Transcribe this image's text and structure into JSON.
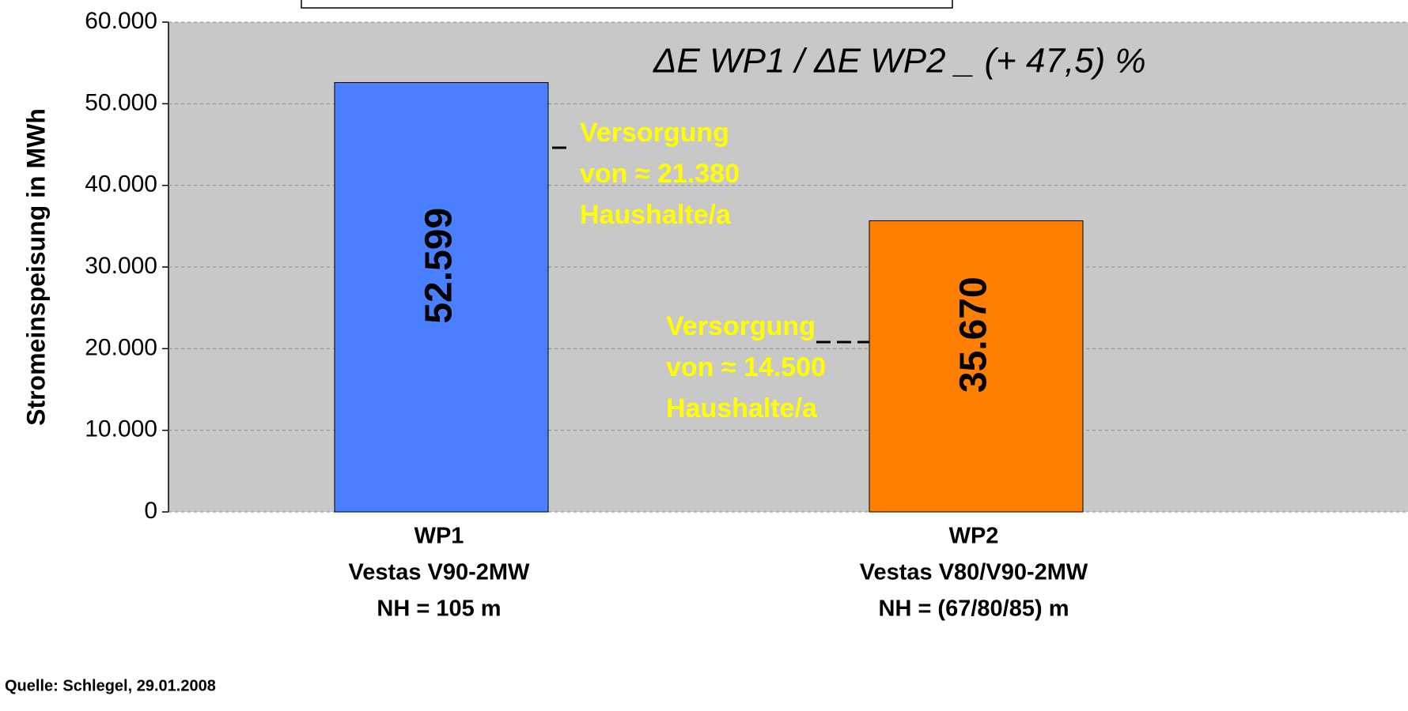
{
  "chart_data": {
    "type": "bar",
    "y_label": "Stromeinspeisung in  MWh",
    "categories": [
      [
        "WP1",
        "Vestas V90-2MW",
        "NH = 105 m"
      ],
      [
        "WP2",
        "Vestas V80/V90-2MW",
        "NH = (67/80/85) m"
      ]
    ],
    "values": [
      52599,
      35670
    ],
    "value_labels": [
      "52.599",
      "35.670"
    ],
    "colors": [
      "#4a7fff",
      "#ff7f00"
    ],
    "ylim": [
      0,
      60000
    ],
    "yticks": [
      {
        "value": 0,
        "label": "0"
      },
      {
        "value": 10000,
        "label": "10.000"
      },
      {
        "value": 20000,
        "label": "20.000"
      },
      {
        "value": 30000,
        "label": "30.000"
      },
      {
        "value": 40000,
        "label": "40.000"
      },
      {
        "value": 50000,
        "label": "50.000"
      },
      {
        "value": 60000,
        "label": "60.000"
      }
    ],
    "grid": true,
    "formula": "ΔE WP1 / ΔE WP2 _ (+ 47,5) %",
    "annotations": [
      [
        "Versorgung",
        "von ≈ 21.380",
        "Haushalte/a"
      ],
      [
        "Versorgung",
        "von ≈ 14.500",
        "Haushalte/a"
      ]
    ],
    "source": "Quelle: Schlegel, 29.01.2008"
  }
}
